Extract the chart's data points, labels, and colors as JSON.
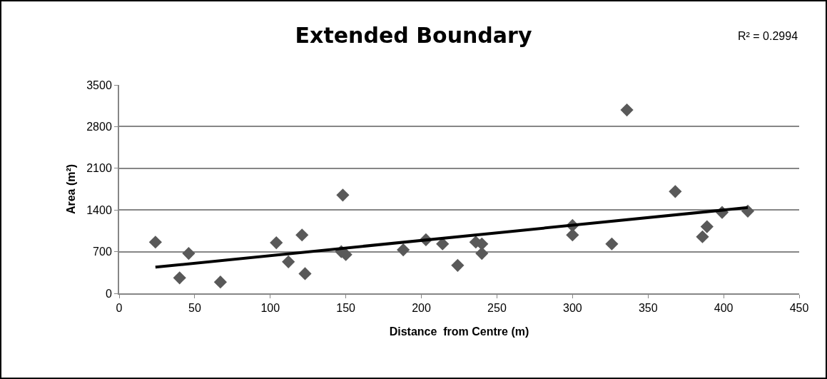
{
  "chart_data": {
    "type": "scatter",
    "title": "Extended Boundary",
    "xlabel": "Distance  from Centre (m)",
    "ylabel": "Area (m²)",
    "annotations": [
      "R² = 0.2994"
    ],
    "x": [
      24,
      40,
      46,
      67,
      104,
      112,
      121,
      123,
      147,
      148,
      150,
      188,
      203,
      214,
      224,
      236,
      240,
      240,
      300,
      300,
      326,
      336,
      368,
      386,
      389,
      399,
      416
    ],
    "series": [
      {
        "color": "#595959",
        "marker": "diamond",
        "values": [
          860,
          260,
          670,
          190,
          850,
          530,
          980,
          330,
          700,
          1650,
          650,
          730,
          900,
          830,
          470,
          860,
          830,
          670,
          1140,
          980,
          830,
          3080,
          1710,
          950,
          1120,
          1360,
          1380
        ]
      },
      {
        "type": "line",
        "x": [
          24,
          416
        ],
        "color": "#000000",
        "line_style": "solid",
        "marker": "none",
        "values": [
          440,
          1440
        ]
      }
    ],
    "xlim": [
      0,
      450
    ],
    "xticks": [
      0,
      50,
      100,
      150,
      200,
      250,
      300,
      350,
      400,
      450
    ],
    "ylim": [
      0,
      3500
    ],
    "yticks": [
      0,
      700,
      1400,
      2100,
      2800,
      3500
    ],
    "grid": "y"
  }
}
